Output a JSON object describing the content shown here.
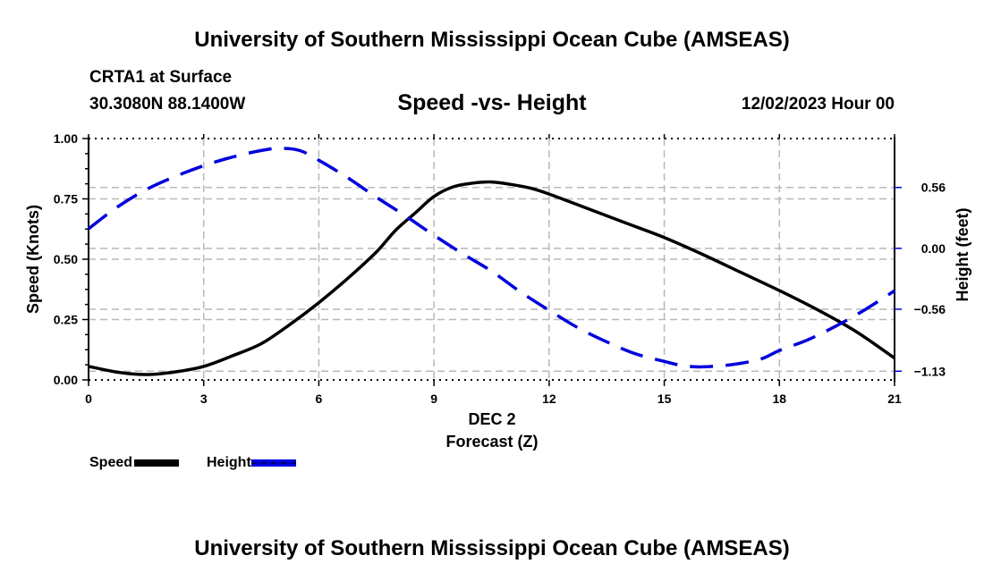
{
  "header": {
    "title": "University of Southern Mississippi Ocean Cube (AMSEAS)",
    "station": "CRTA1 at Surface",
    "coordinates": "30.3080N  88.1400W",
    "subtitle": "Speed -vs- Height",
    "datetime": "12/02/2023 Hour 00"
  },
  "footer": {
    "title": "University of Southern Mississippi Ocean Cube (AMSEAS)"
  },
  "legend": {
    "items": [
      {
        "label": "Speed",
        "color": "#000000",
        "style": "solid"
      },
      {
        "label": "Height",
        "color": "#0000dd",
        "style": "dashed"
      }
    ]
  },
  "chart_data": {
    "type": "line",
    "title": "Speed -vs- Height",
    "xlabel": "Forecast (Z)",
    "xsublabel": "DEC 2",
    "ylabel": "Speed (Knots)",
    "y2label": "Height (feet)",
    "xlim": [
      0,
      21
    ],
    "ylim": [
      0,
      1.0
    ],
    "y2lim": [
      -1.21,
      1.01
    ],
    "x_ticks": [
      0,
      3,
      6,
      9,
      12,
      15,
      18,
      21
    ],
    "x_tick_labels": [
      "0",
      "3",
      "6",
      "9",
      "12",
      "15",
      "18",
      "21"
    ],
    "y_ticks": [
      0.0,
      0.25,
      0.5,
      0.75,
      1.0
    ],
    "y_tick_labels": [
      "0.00",
      "0.25",
      "0.50",
      "0.75",
      "1.00"
    ],
    "y2_ticks": [
      0.56,
      0.0,
      -0.56,
      -1.13
    ],
    "y2_tick_labels": [
      "0.56",
      "0.00",
      "−0.56",
      "−1.13"
    ],
    "grid": true,
    "legend_position": "bottom-left",
    "series": [
      {
        "name": "Speed",
        "axis": "left",
        "color": "#000000",
        "style": "solid",
        "x": [
          0,
          0.75,
          1.5,
          2.25,
          3,
          3.75,
          4.5,
          5.25,
          6,
          6.75,
          7.5,
          8,
          8.5,
          9,
          9.5,
          10,
          10.5,
          11,
          11.5,
          12,
          13,
          14,
          15,
          16,
          17,
          18,
          19,
          20,
          21
        ],
        "values": [
          0.056,
          0.032,
          0.022,
          0.033,
          0.056,
          0.1,
          0.15,
          0.23,
          0.32,
          0.42,
          0.53,
          0.62,
          0.69,
          0.76,
          0.8,
          0.815,
          0.82,
          0.81,
          0.795,
          0.77,
          0.71,
          0.65,
          0.59,
          0.52,
          0.445,
          0.37,
          0.29,
          0.2,
          0.09
        ]
      },
      {
        "name": "Height",
        "axis": "right",
        "color": "#0000dd",
        "style": "dashed",
        "x": [
          0,
          0.75,
          1.5,
          2.25,
          3,
          3.75,
          4.5,
          5,
          5.5,
          6,
          6.75,
          7.5,
          8.25,
          9,
          9.75,
          10.5,
          11.25,
          12,
          12.75,
          13.5,
          14.25,
          15,
          15.5,
          16,
          16.75,
          17.5,
          18,
          18.75,
          19.5,
          20.25,
          21
        ],
        "values": [
          0.18,
          0.38,
          0.54,
          0.66,
          0.76,
          0.84,
          0.9,
          0.92,
          0.9,
          0.81,
          0.65,
          0.47,
          0.3,
          0.12,
          -0.05,
          -0.21,
          -0.4,
          -0.57,
          -0.73,
          -0.86,
          -0.97,
          -1.04,
          -1.08,
          -1.09,
          -1.07,
          -1.02,
          -0.94,
          -0.84,
          -0.71,
          -0.56,
          -0.39
        ]
      }
    ]
  }
}
